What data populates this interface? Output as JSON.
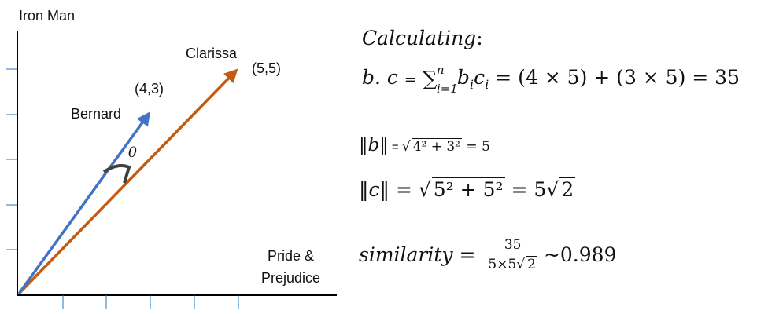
{
  "diagram": {
    "y_axis_label": "Iron Man",
    "x_axis_label_line1": "Pride &",
    "x_axis_label_line2": "Prejudice",
    "vectors": [
      {
        "name": "Bernard",
        "coord_label": "(4,3)",
        "color": "#4472c4",
        "x": 4,
        "y": 3
      },
      {
        "name": "Clarissa",
        "coord_label": "(5,5)",
        "color": "#c55a11",
        "x": 5,
        "y": 5
      }
    ],
    "angle_label": "θ",
    "angle_arc_color": "#404040",
    "axis_color": "#000000",
    "tick_color": "#2e75b6"
  },
  "math": {
    "heading": "Calculating",
    "heading_colon": ":",
    "dot_lhs": "b. c",
    "dot_eq": "=",
    "sum_upper": "n",
    "sum_lower": "i=1",
    "sum_term": "b",
    "sum_term_sub": "i",
    "sum_term2": "c",
    "sum_term2_sub": "i",
    "dot_expansion": " = (4 ×  5) + (3 × 5) = 35",
    "norm_b_lhs": "‖b‖",
    "norm_b_eq": " = ",
    "norm_b_radicand": "4² + 3²",
    "norm_b_result": " = 5",
    "norm_c_lhs": "‖c‖",
    "norm_c_eq": " = ",
    "norm_c_radicand": "5² + 5²",
    "norm_c_mid": " = 5",
    "norm_c_radicand2": "2",
    "similarity_lhs": "similarity",
    "similarity_eq": " = ",
    "frac_num": "35",
    "frac_den_prefix": "5×5",
    "frac_den_radicand": "2",
    "similarity_result": "~0.989"
  }
}
